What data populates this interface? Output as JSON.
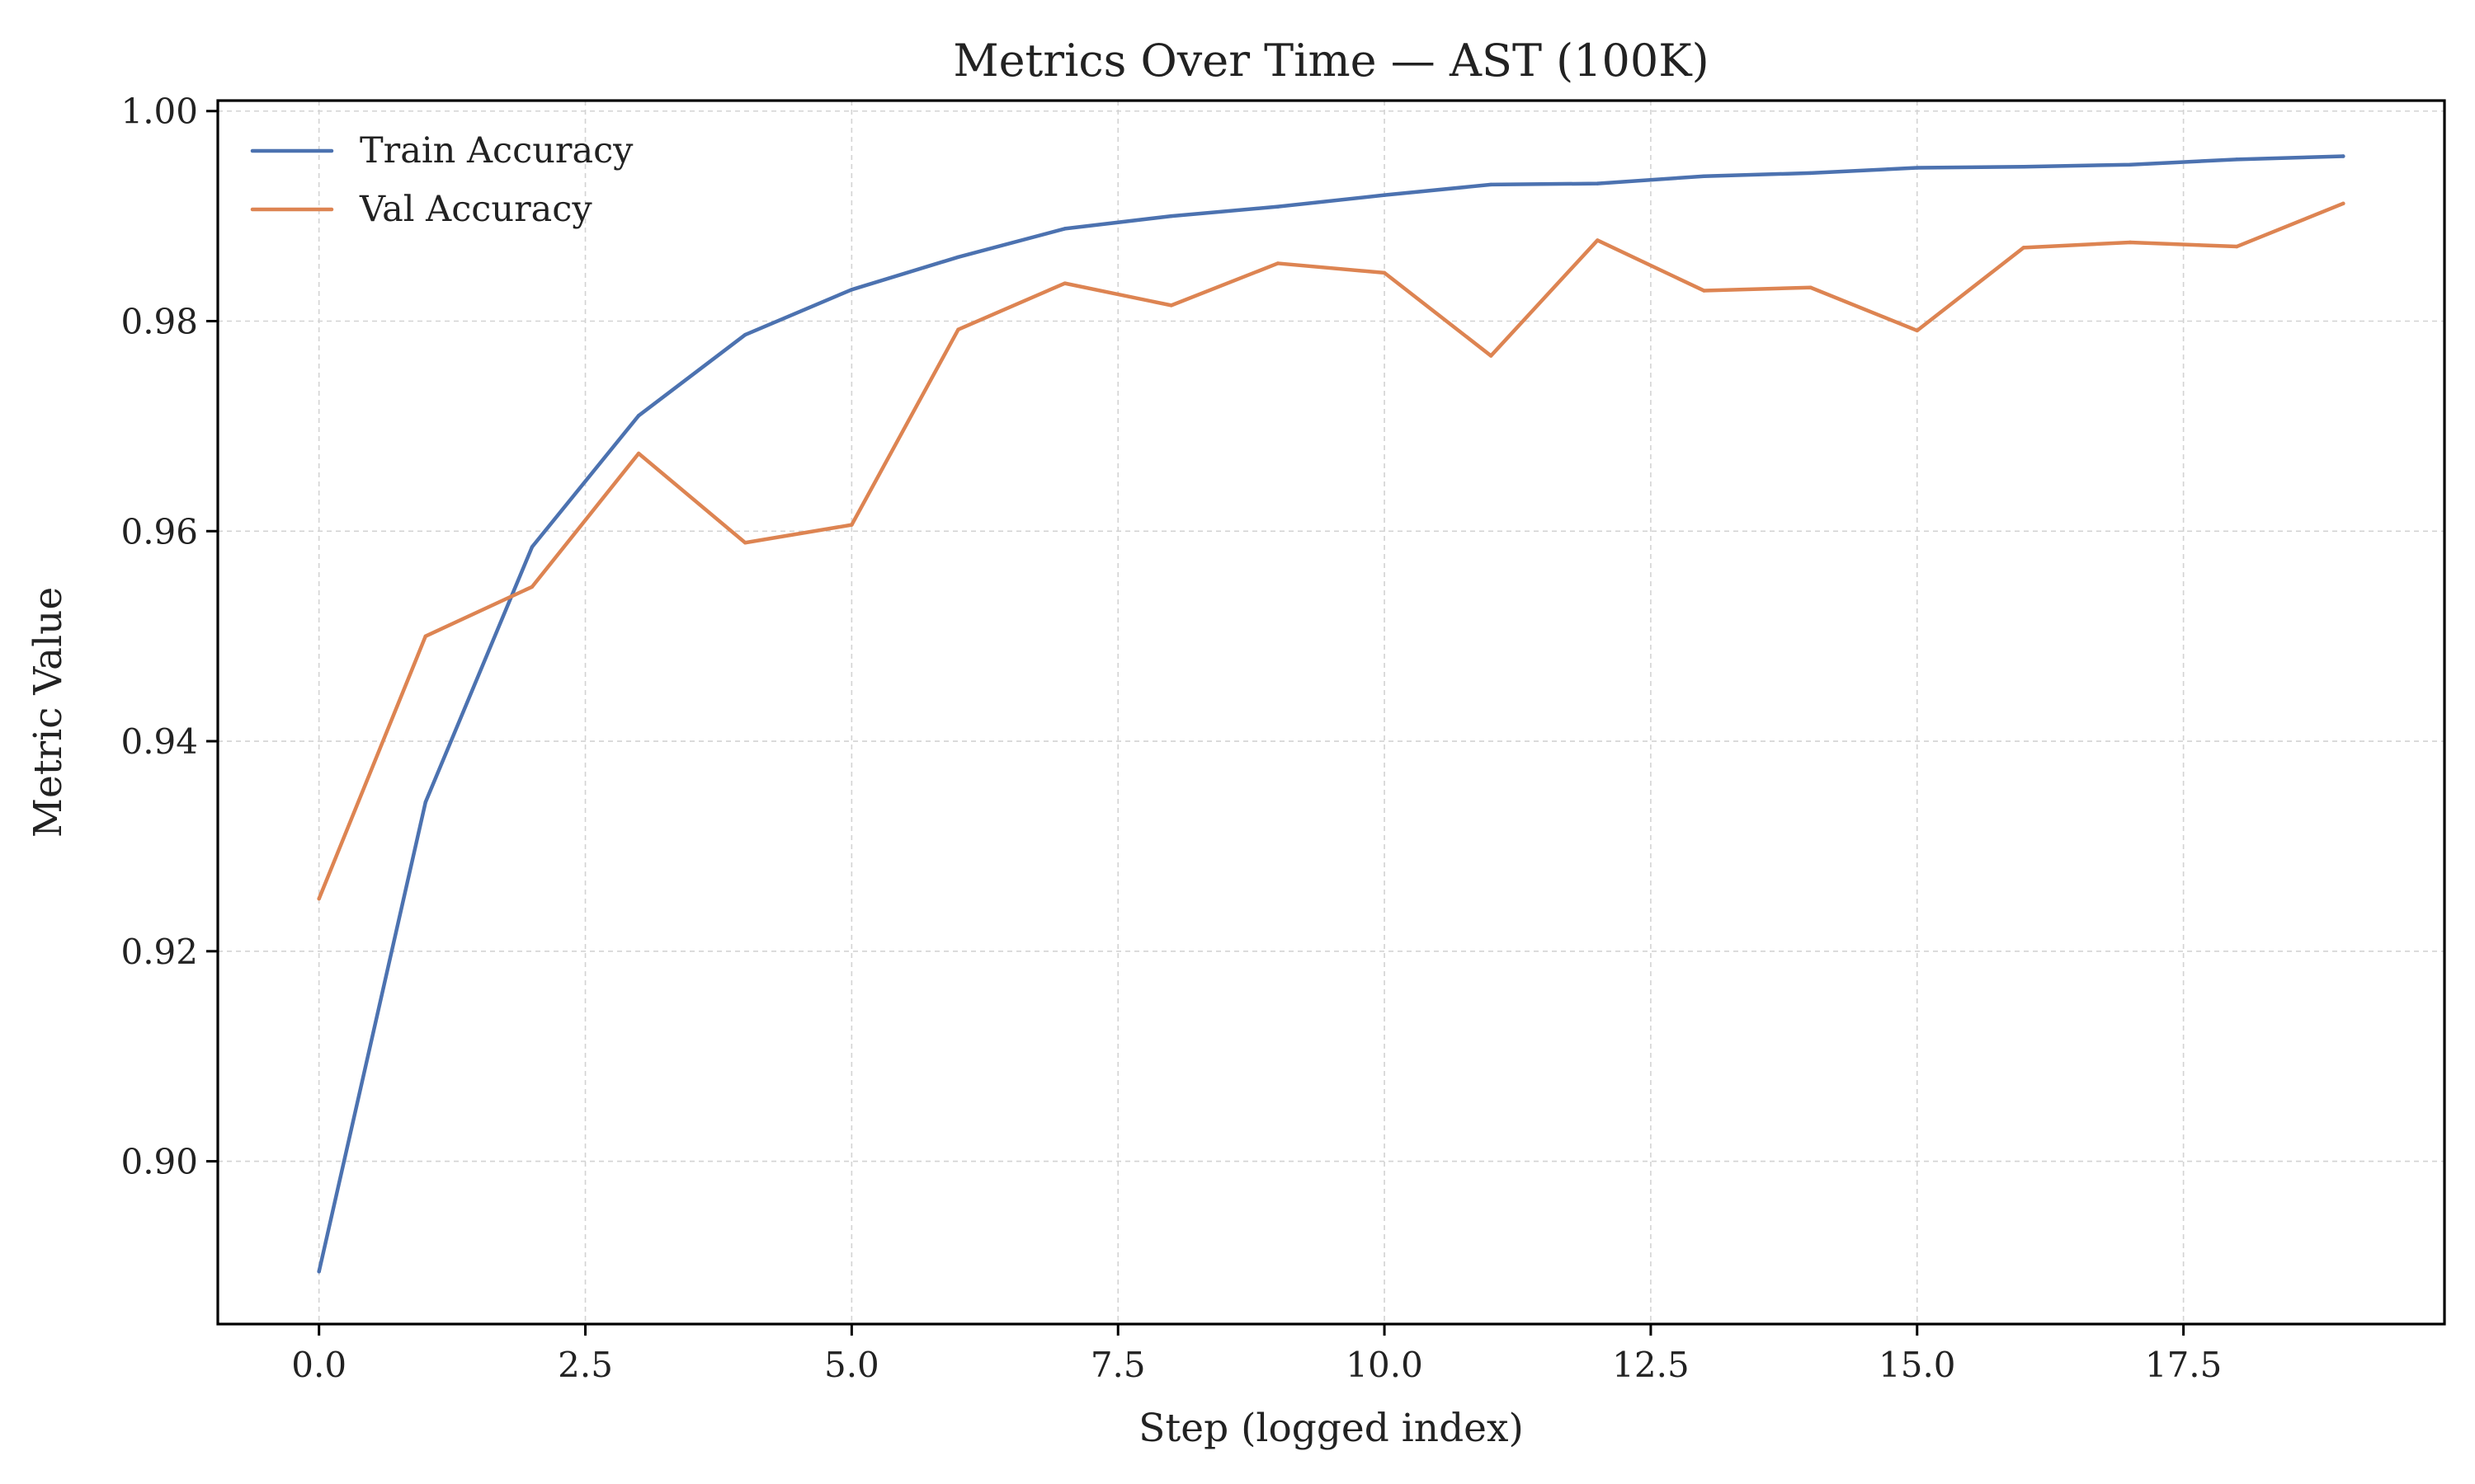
{
  "chart_data": {
    "type": "line",
    "title": "Metrics Over Time — AST (100K)",
    "xlabel": "Step (logged index)",
    "ylabel": "Metric Value",
    "xlim": [
      -0.95,
      19.95
    ],
    "ylim": [
      0.8845,
      1.001
    ],
    "xticks": [
      0.0,
      2.5,
      5.0,
      7.5,
      10.0,
      12.5,
      15.0,
      17.5
    ],
    "xtick_labels": [
      "0.0",
      "2.5",
      "5.0",
      "7.5",
      "10.0",
      "12.5",
      "15.0",
      "17.5"
    ],
    "yticks": [
      0.9,
      0.92,
      0.94,
      0.96,
      0.98,
      1.0
    ],
    "ytick_labels": [
      "0.90",
      "0.92",
      "0.94",
      "0.96",
      "0.98",
      "1.00"
    ],
    "grid": true,
    "legend_position": "upper-left",
    "x": [
      0,
      1,
      2,
      3,
      4,
      5,
      6,
      7,
      8,
      9,
      10,
      11,
      12,
      13,
      14,
      15,
      16,
      17,
      18,
      19
    ],
    "series": [
      {
        "name": "Train Accuracy",
        "color": "#4c72b0",
        "values": [
          0.8895,
          0.9342,
          0.9585,
          0.971,
          0.9787,
          0.983,
          0.9861,
          0.9888,
          0.99,
          0.9909,
          0.992,
          0.993,
          0.9931,
          0.9938,
          0.9941,
          0.9946,
          0.9947,
          0.9949,
          0.9954,
          0.9957
        ]
      },
      {
        "name": "Val Accuracy",
        "color": "#dd8452",
        "values": [
          0.925,
          0.95,
          0.9547,
          0.9674,
          0.9589,
          0.9606,
          0.9792,
          0.9836,
          0.9815,
          0.9855,
          0.9846,
          0.9767,
          0.9877,
          0.9829,
          0.9832,
          0.9791,
          0.987,
          0.9875,
          0.9871,
          0.9912
        ]
      }
    ]
  }
}
